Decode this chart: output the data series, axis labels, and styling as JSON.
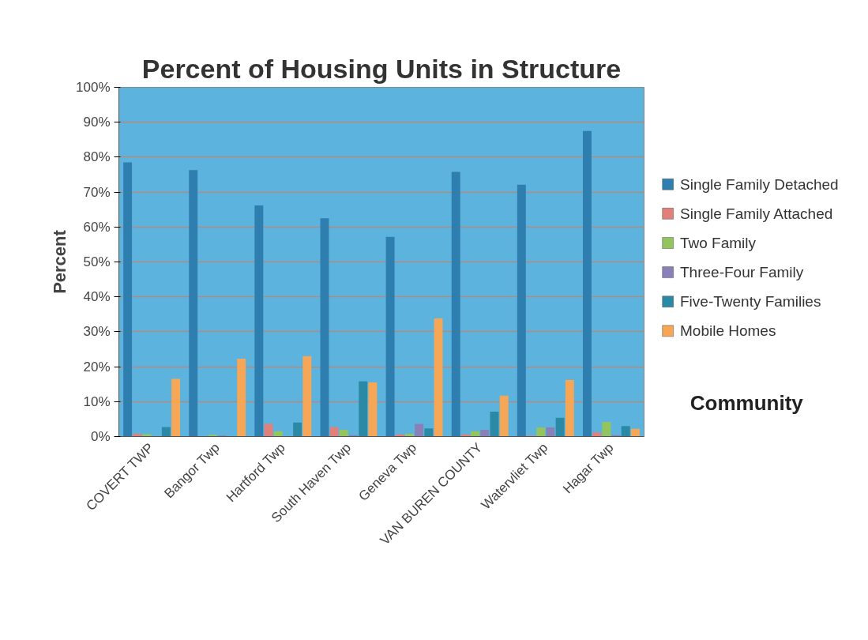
{
  "chart_data": {
    "type": "bar",
    "title": "Percent of Housing Units in Structure",
    "xlabel": "Community",
    "ylabel": "Percent",
    "categories": [
      "COVERT TWP",
      "Bangor Twp",
      "Hartford Twp",
      "South Haven Twp",
      "Geneva Twp",
      "VAN BUREN COUNTY",
      "Watervliet Twp",
      "Hagar Twp"
    ],
    "series": [
      {
        "name": "Single Family Detached",
        "color": "#2e7fb0",
        "values": [
          78.5,
          76.3,
          66.2,
          62.5,
          57.2,
          75.8,
          72.1,
          87.5
        ]
      },
      {
        "name": "Single Family Attached",
        "color": "#e0807a",
        "values": [
          0.8,
          0,
          3.6,
          2.7,
          0.6,
          0.6,
          0.3,
          1.2
        ]
      },
      {
        "name": "Two Family",
        "color": "#93c45e",
        "values": [
          0.7,
          0.5,
          1.5,
          1.9,
          0.8,
          1.5,
          2.6,
          4.2
        ]
      },
      {
        "name": "Three-Four Family",
        "color": "#8a80b8",
        "values": [
          0,
          0.3,
          0,
          0.4,
          3.6,
          1.9,
          2.6,
          0.4
        ]
      },
      {
        "name": "Five-Twenty Families",
        "color": "#2a8aa5",
        "values": [
          2.7,
          0,
          4.0,
          15.8,
          2.3,
          7.1,
          5.4,
          3.0
        ]
      },
      {
        "name": "Mobile Homes",
        "color": "#f5a656",
        "values": [
          16.5,
          22.3,
          23.0,
          15.5,
          33.8,
          11.7,
          16.2,
          2.2
        ]
      }
    ],
    "ylim": [
      0,
      100
    ],
    "yticks": [
      {
        "value": 0,
        "label": "0%"
      },
      {
        "value": 10,
        "label": "10%"
      },
      {
        "value": 20,
        "label": "20%"
      },
      {
        "value": 30,
        "label": "30%"
      },
      {
        "value": 40,
        "label": "40%"
      },
      {
        "value": 50,
        "label": "50%"
      },
      {
        "value": 60,
        "label": "60%"
      },
      {
        "value": 70,
        "label": "70%"
      },
      {
        "value": 80,
        "label": "80%"
      },
      {
        "value": 90,
        "label": "90%"
      },
      {
        "value": 100,
        "label": "100%"
      }
    ],
    "grid": "y",
    "legend": "right"
  }
}
